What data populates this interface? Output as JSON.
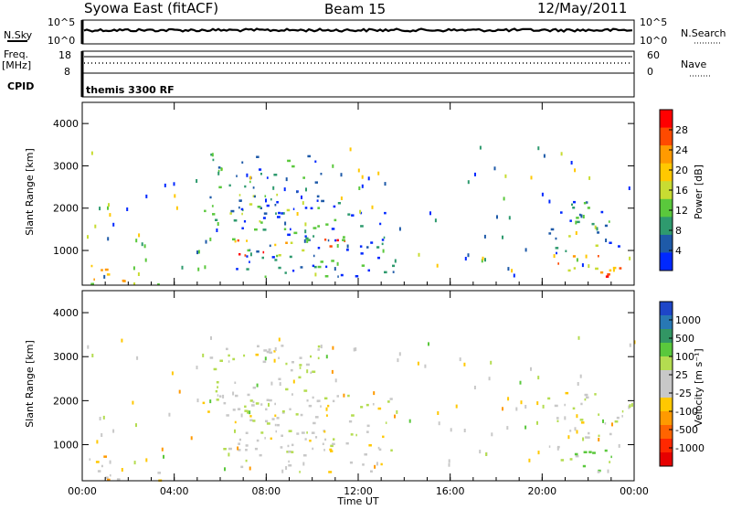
{
  "header": {
    "station": "Syowa East (fitACF)",
    "beam": "Beam 15",
    "date": "12/May/2011"
  },
  "noise_panel": {
    "left_label": "N.Sky",
    "left_ticks": [
      "10^5",
      "10^0"
    ],
    "right_ticks": [
      "10^5",
      "10^0"
    ],
    "right_label": "N.Search"
  },
  "freq_panel": {
    "left_label_line1": "Freq.",
    "left_label_line2": "[MHz]",
    "left_ticks": [
      "18",
      "8"
    ],
    "right_ticks": [
      "60",
      "0"
    ],
    "right_label": "Nave"
  },
  "cpid_panel": {
    "label": "CPID",
    "text": "themis 3300 RF"
  },
  "power_colorbar": {
    "label": "Power [dB]",
    "ticks": [
      "28",
      "24",
      "20",
      "16",
      "12",
      "8",
      "4"
    ],
    "colors": [
      "#ff0000",
      "#ff4a00",
      "#ff9a00",
      "#ffc800",
      "#c8dc32",
      "#5ac83c",
      "#2e9a6e",
      "#1e5aa8",
      "#0028ff"
    ]
  },
  "velocity_colorbar": {
    "label": "Velocity [m s⁻¹]",
    "ticks": [
      "1000",
      "500",
      "100",
      "25",
      "-25",
      "-100",
      "-500",
      "-1000"
    ],
    "colors": [
      "#1e46c8",
      "#2878b4",
      "#329664",
      "#5ac83c",
      "#b4dc50",
      "#c8c8c8",
      "#c8c8c8",
      "#ffc800",
      "#ff9a00",
      "#ff6400",
      "#ff2800",
      "#e60000"
    ]
  },
  "x_axis": {
    "label": "Time UT",
    "ticks": [
      "00:00",
      "04:00",
      "08:00",
      "12:00",
      "16:00",
      "20:00",
      "00:00"
    ]
  },
  "y_axis": {
    "label": "Slant Range [km]",
    "ticks": [
      "1000",
      "2000",
      "3000",
      "4000"
    ]
  },
  "chart_data": [
    {
      "type": "heatmap",
      "panel": "power",
      "title": "Power",
      "xlabel": "Time UT",
      "ylabel": "Slant Range [km]",
      "xlim_hours": [
        0,
        24
      ],
      "ylim_km": [
        180,
        4500
      ],
      "colorbar_label": "Power [dB]",
      "colorbar_range": [
        0,
        32
      ],
      "regions": [
        {
          "t": [
            0.1,
            1.5
          ],
          "r": [
            200,
            700
          ],
          "value": 18
        },
        {
          "t": [
            1.2,
            4.0
          ],
          "r": [
            200,
            400
          ],
          "value": 18
        },
        {
          "t": [
            5.0,
            9.0
          ],
          "r": [
            1500,
            2000
          ],
          "value": 10
        },
        {
          "t": [
            6.0,
            11.5
          ],
          "r": [
            900,
            1300
          ],
          "value": 22
        },
        {
          "t": [
            5.5,
            10.5
          ],
          "r": [
            2000,
            3300
          ],
          "value": 8
        },
        {
          "t": [
            6.5,
            13.5
          ],
          "r": [
            400,
            2200
          ],
          "value": 6
        },
        {
          "t": [
            20.5,
            23.5
          ],
          "r": [
            400,
            900
          ],
          "value": 24
        },
        {
          "t": [
            20.2,
            23.5
          ],
          "r": [
            900,
            2200
          ],
          "value": 8
        }
      ]
    },
    {
      "type": "heatmap",
      "panel": "velocity",
      "title": "Velocity",
      "xlabel": "Time UT",
      "ylabel": "Slant Range [km]",
      "xlim_hours": [
        0,
        24
      ],
      "ylim_km": [
        180,
        4500
      ],
      "colorbar_label": "Velocity [m s⁻¹]",
      "colorbar_range": [
        -1000,
        1000
      ],
      "regions": [
        {
          "t": [
            0.1,
            1.5
          ],
          "r": [
            200,
            800
          ],
          "value": -200
        },
        {
          "t": [
            1.2,
            4.0
          ],
          "r": [
            200,
            400
          ],
          "value": -150
        },
        {
          "t": [
            5.0,
            9.0
          ],
          "r": [
            1500,
            2000
          ],
          "value": 0
        },
        {
          "t": [
            6.0,
            11.5
          ],
          "r": [
            900,
            1300
          ],
          "value": 0
        },
        {
          "t": [
            5.5,
            10.5
          ],
          "r": [
            2000,
            3300
          ],
          "value": 40
        },
        {
          "t": [
            6.5,
            13.5
          ],
          "r": [
            400,
            2200
          ],
          "value": 20
        },
        {
          "t": [
            20.5,
            23.5
          ],
          "r": [
            400,
            900
          ],
          "value": 300
        },
        {
          "t": [
            20.2,
            23.5
          ],
          "r": [
            900,
            2200
          ],
          "value": 60
        }
      ]
    }
  ]
}
